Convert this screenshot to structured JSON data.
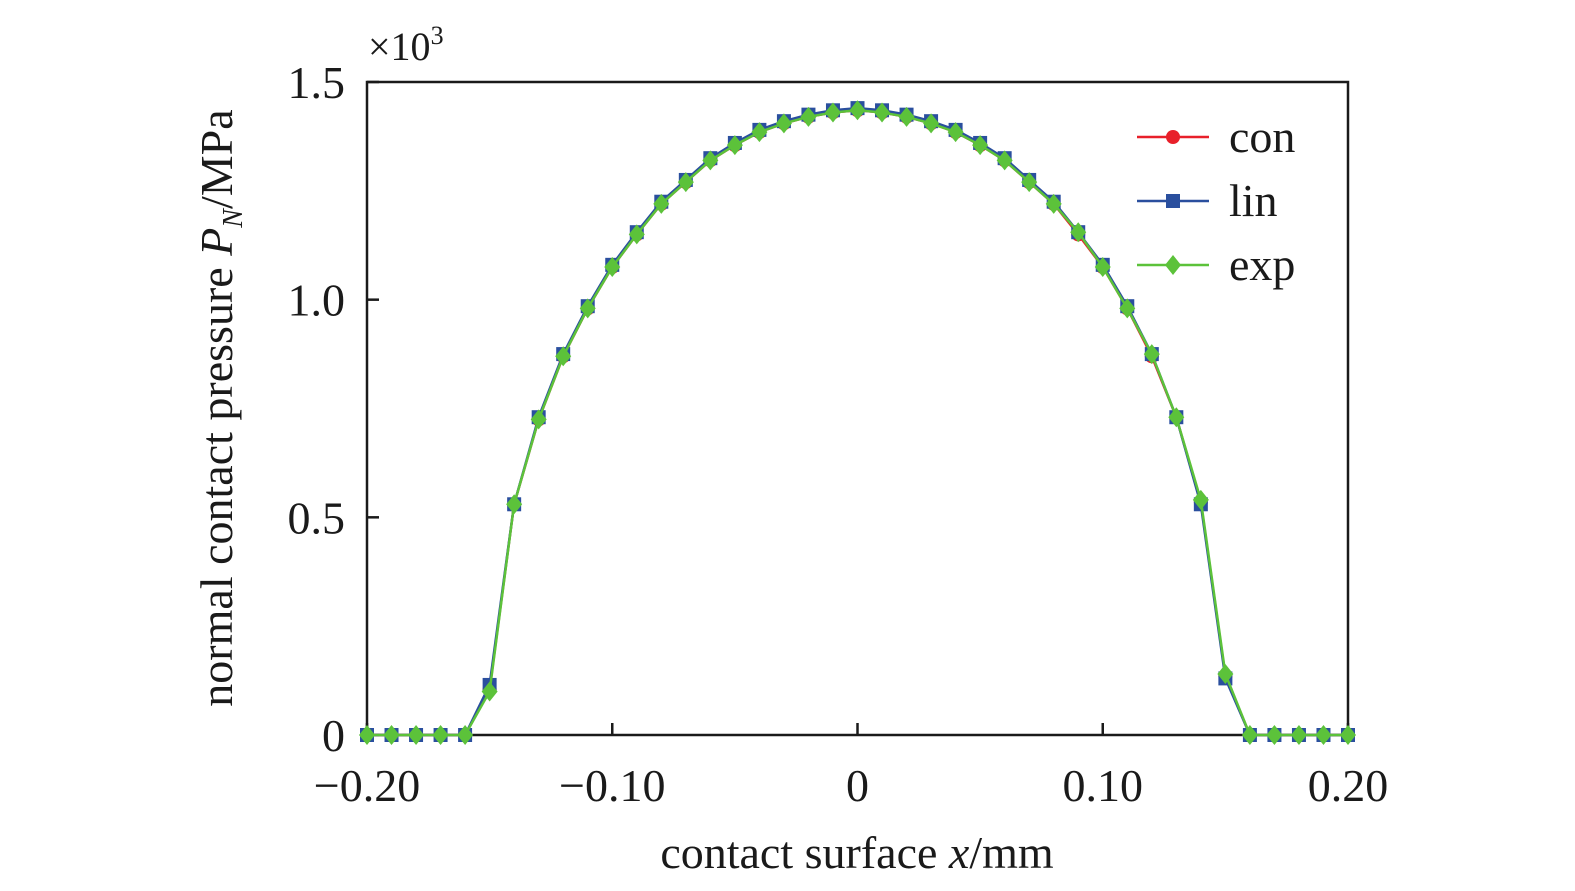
{
  "chart_data": {
    "type": "line",
    "title": "",
    "xlabel_prefix": "contact surface ",
    "xlabel_var": "x",
    "xlabel_unit": "/mm",
    "ylabel_prefix": "normal contact pressure ",
    "ylabel_var": "P",
    "ylabel_sub": "N",
    "ylabel_unit": "/MPa",
    "y_multiplier_base": "×10",
    "y_multiplier_exp": "3",
    "xlim": [
      -0.2,
      0.2
    ],
    "ylim": [
      0,
      1.5
    ],
    "x_ticks": [
      -0.2,
      -0.1,
      0,
      0.1,
      0.2
    ],
    "x_tick_labels": [
      "−0.20",
      "−0.10",
      "0",
      "0.10",
      "0.20"
    ],
    "y_ticks": [
      0,
      0.5,
      1.0,
      1.5
    ],
    "y_tick_labels": [
      "0",
      "0.5",
      "1.0",
      "1.5"
    ],
    "grid": false,
    "legend_position": "top-right",
    "x": [
      -0.2,
      -0.19,
      -0.18,
      -0.17,
      -0.16,
      -0.15,
      -0.14,
      -0.13,
      -0.12,
      -0.11,
      -0.1,
      -0.09,
      -0.08,
      -0.07,
      -0.06,
      -0.05,
      -0.04,
      -0.03,
      -0.02,
      -0.01,
      0.0,
      0.01,
      0.02,
      0.03,
      0.04,
      0.05,
      0.06,
      0.07,
      0.08,
      0.09,
      0.1,
      0.11,
      0.12,
      0.13,
      0.14,
      0.15,
      0.16,
      0.17,
      0.18,
      0.19,
      0.2
    ],
    "series": [
      {
        "name": "con",
        "color": "#e8202a",
        "marker": "circle",
        "values": [
          0,
          0,
          0,
          0,
          0,
          0.105,
          0.53,
          0.725,
          0.87,
          0.98,
          1.075,
          1.15,
          1.22,
          1.27,
          1.32,
          1.355,
          1.385,
          1.405,
          1.42,
          1.43,
          1.435,
          1.43,
          1.42,
          1.405,
          1.385,
          1.355,
          1.32,
          1.27,
          1.22,
          1.15,
          1.075,
          0.98,
          0.87,
          0.73,
          0.535,
          0.135,
          0,
          0,
          0,
          0,
          0
        ]
      },
      {
        "name": "lin",
        "color": "#2a4f9e",
        "marker": "square",
        "values": [
          0,
          0,
          0,
          0,
          0,
          0.115,
          0.53,
          0.73,
          0.875,
          0.985,
          1.08,
          1.155,
          1.225,
          1.275,
          1.325,
          1.36,
          1.39,
          1.41,
          1.425,
          1.435,
          1.44,
          1.435,
          1.425,
          1.41,
          1.39,
          1.36,
          1.325,
          1.275,
          1.225,
          1.155,
          1.08,
          0.985,
          0.875,
          0.73,
          0.53,
          0.13,
          0,
          0,
          0,
          0,
          0
        ]
      },
      {
        "name": "exp",
        "color": "#5cc23a",
        "marker": "diamond",
        "values": [
          0,
          0,
          0,
          0,
          0,
          0.1,
          0.53,
          0.725,
          0.87,
          0.98,
          1.075,
          1.15,
          1.22,
          1.27,
          1.32,
          1.355,
          1.385,
          1.405,
          1.42,
          1.43,
          1.435,
          1.43,
          1.42,
          1.405,
          1.385,
          1.355,
          1.32,
          1.27,
          1.22,
          1.155,
          1.075,
          0.98,
          0.875,
          0.73,
          0.54,
          0.14,
          0,
          0,
          0,
          0,
          0
        ]
      }
    ]
  }
}
